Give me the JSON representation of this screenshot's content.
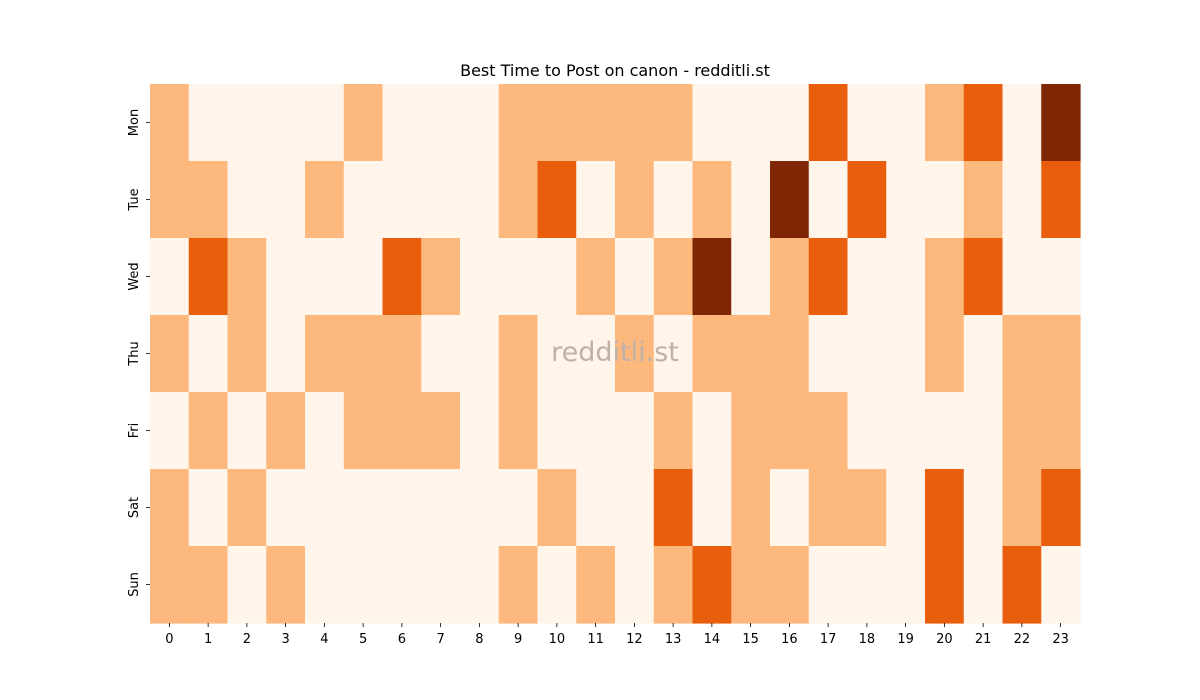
{
  "chart_data": {
    "type": "heatmap",
    "title": "Best Time to Post on canon - redditli.st",
    "watermark": "redditli.st",
    "x": [
      "0",
      "1",
      "2",
      "3",
      "4",
      "5",
      "6",
      "7",
      "8",
      "9",
      "10",
      "11",
      "12",
      "13",
      "14",
      "15",
      "16",
      "17",
      "18",
      "19",
      "20",
      "21",
      "22",
      "23"
    ],
    "y": [
      "Mon",
      "Tue",
      "Wed",
      "Thu",
      "Fri",
      "Sat",
      "Sun"
    ],
    "levels": [
      [
        1,
        0,
        0,
        0,
        0,
        1,
        0,
        0,
        0,
        1,
        1,
        1,
        1,
        1,
        0,
        0,
        0,
        2,
        0,
        0,
        1,
        2,
        0,
        3
      ],
      [
        1,
        1,
        0,
        0,
        1,
        0,
        0,
        0,
        0,
        1,
        2,
        0,
        1,
        0,
        1,
        0,
        3,
        0,
        2,
        0,
        0,
        1,
        0,
        2
      ],
      [
        0,
        2,
        1,
        0,
        0,
        0,
        2,
        1,
        0,
        0,
        0,
        1,
        0,
        1,
        3,
        0,
        1,
        2,
        0,
        0,
        1,
        2,
        0,
        0
      ],
      [
        1,
        0,
        1,
        0,
        1,
        1,
        1,
        0,
        0,
        1,
        0,
        0,
        1,
        0,
        1,
        1,
        1,
        0,
        0,
        0,
        1,
        0,
        1,
        1
      ],
      [
        0,
        1,
        0,
        1,
        0,
        1,
        1,
        1,
        0,
        1,
        0,
        0,
        0,
        1,
        0,
        1,
        1,
        1,
        0,
        0,
        0,
        0,
        1,
        1
      ],
      [
        1,
        0,
        1,
        0,
        0,
        0,
        0,
        0,
        0,
        0,
        1,
        0,
        0,
        2,
        0,
        1,
        0,
        1,
        1,
        0,
        2,
        0,
        1,
        2
      ],
      [
        1,
        1,
        0,
        1,
        0,
        0,
        0,
        0,
        0,
        1,
        0,
        1,
        0,
        1,
        2,
        1,
        1,
        0,
        0,
        0,
        2,
        0,
        2,
        0
      ]
    ],
    "colors": [
      "#fff5eb",
      "#fdb87d",
      "#e95e0d",
      "#7f2704"
    ],
    "xlabel": "",
    "ylabel": "",
    "grid": false
  }
}
